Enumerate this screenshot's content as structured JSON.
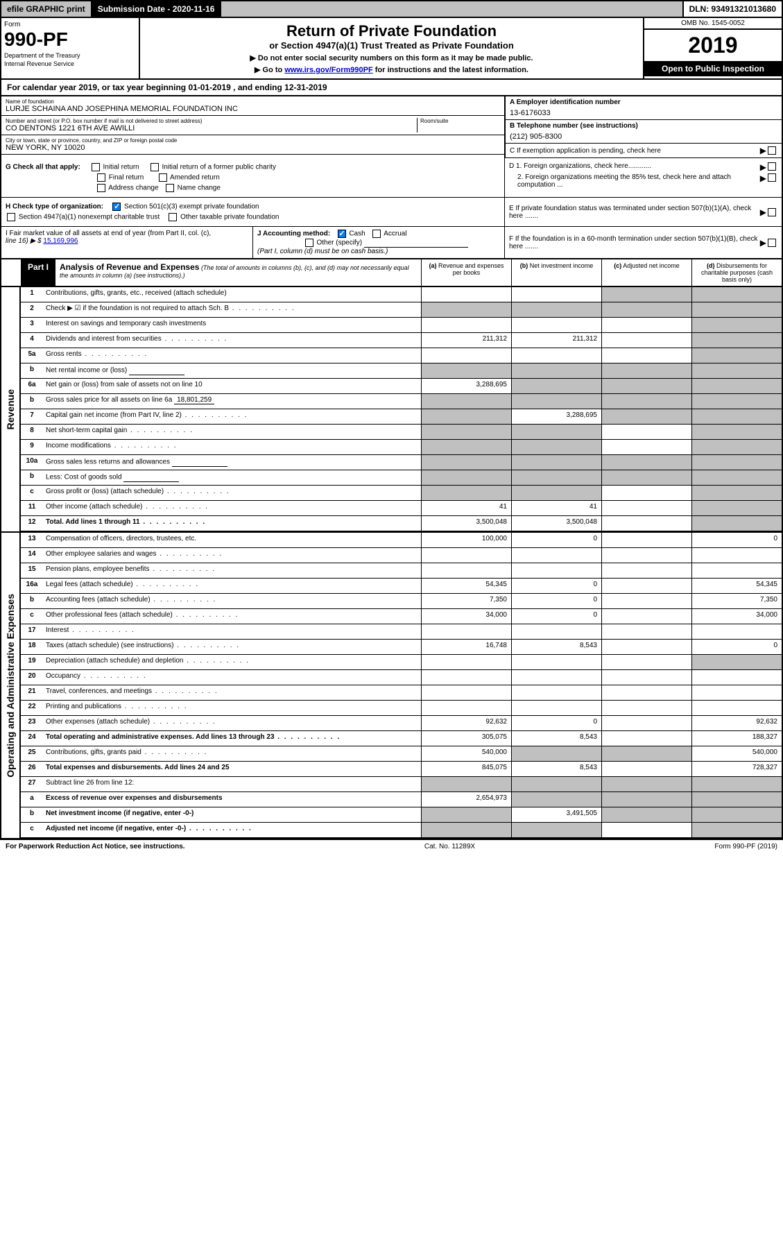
{
  "topbar": {
    "efile": "efile GRAPHIC print",
    "sub_label": "Submission Date - 2020-11-16",
    "dln": "DLN: 93491321013680"
  },
  "header": {
    "form_label": "Form",
    "form_num": "990-PF",
    "dept": "Department of the Treasury",
    "irs": "Internal Revenue Service",
    "title": "Return of Private Foundation",
    "subtitle": "or Section 4947(a)(1) Trust Treated as Private Foundation",
    "warn1": "▶ Do not enter social security numbers on this form as it may be made public.",
    "warn2_pre": "▶ Go to ",
    "warn2_link": "www.irs.gov/Form990PF",
    "warn2_post": " for instructions and the latest information.",
    "omb": "OMB No. 1545-0052",
    "year": "2019",
    "inspect": "Open to Public Inspection"
  },
  "cal": "For calendar year 2019, or tax year beginning 01-01-2019                            , and ending 12-31-2019",
  "info": {
    "name_label": "Name of foundation",
    "name": "LURJE SCHAINA AND JOSEPHINA MEMORIAL FOUNDATION INC",
    "addr_label": "Number and street (or P.O. box number if mail is not delivered to street address)",
    "addr": "CO DENTONS 1221 6TH AVE AWILLI",
    "room_label": "Room/suite",
    "city_label": "City or town, state or province, country, and ZIP or foreign postal code",
    "city": "NEW YORK, NY  10020",
    "ein_label": "A Employer identification number",
    "ein": "13-6176033",
    "tel_label": "B Telephone number (see instructions)",
    "tel": "(212) 905-8300",
    "c": "C If exemption application is pending, check here",
    "d1": "D 1. Foreign organizations, check here............",
    "d2": "2. Foreign organizations meeting the 85% test, check here and attach computation ...",
    "e": "E  If private foundation status was terminated under section 507(b)(1)(A), check here .......",
    "f": "F  If the foundation is in a 60-month termination under section 507(b)(1)(B), check here .......",
    "g_label": "G Check all that apply:",
    "g_opts": [
      "Initial return",
      "Initial return of a former public charity",
      "Final return",
      "Amended return",
      "Address change",
      "Name change"
    ],
    "h_label": "H Check type of organization:",
    "h_opts": [
      "Section 501(c)(3) exempt private foundation",
      "Section 4947(a)(1) nonexempt charitable trust",
      "Other taxable private foundation"
    ],
    "i_label": "I Fair market value of all assets at end of year (from Part II, col. (c),",
    "i_line": "line 16) ▶ $",
    "i_val": "15,169,996",
    "j_label": "J Accounting method:",
    "j_cash": "Cash",
    "j_accrual": "Accrual",
    "j_other": "Other (specify)",
    "j_note": "(Part I, column (d) must be on cash basis.)"
  },
  "part1": {
    "tab": "Part I",
    "title": "Analysis of Revenue and Expenses",
    "sub": " (The total of amounts in columns (b), (c), and (d) may not necessarily equal the amounts in column (a) (see instructions).)",
    "cols": [
      {
        "l": "(a)",
        "t": "Revenue and expenses per books"
      },
      {
        "l": "(b)",
        "t": "Net investment income"
      },
      {
        "l": "(c)",
        "t": "Adjusted net income"
      },
      {
        "l": "(d)",
        "t": "Disbursements for charitable purposes (cash basis only)"
      }
    ]
  },
  "revenue_label": "Revenue",
  "expense_label": "Operating and Administrative Expenses",
  "rows": [
    {
      "n": "1",
      "d": "Contributions, gifts, grants, etc., received (attach schedule)",
      "a": "",
      "b": "",
      "c": "g",
      "dd": "g"
    },
    {
      "n": "2",
      "d": "Check ▶ ☑ if the foundation is not required to attach Sch. B",
      "a": "g",
      "b": "g",
      "c": "g",
      "dd": "g",
      "dots": true
    },
    {
      "n": "3",
      "d": "Interest on savings and temporary cash investments",
      "a": "",
      "b": "",
      "c": "",
      "dd": "g"
    },
    {
      "n": "4",
      "d": "Dividends and interest from securities",
      "a": "211,312",
      "b": "211,312",
      "c": "",
      "dd": "g",
      "dots": true
    },
    {
      "n": "5a",
      "d": "Gross rents",
      "a": "",
      "b": "",
      "c": "",
      "dd": "g",
      "dots": true
    },
    {
      "n": "b",
      "d": "Net rental income or (loss)",
      "a": "g",
      "b": "g",
      "c": "g",
      "dd": "g",
      "box": true
    },
    {
      "n": "6a",
      "d": "Net gain or (loss) from sale of assets not on line 10",
      "a": "3,288,695",
      "b": "g",
      "c": "g",
      "dd": "g"
    },
    {
      "n": "b",
      "d": "Gross sales price for all assets on line 6a",
      "a": "g",
      "b": "g",
      "c": "g",
      "dd": "g",
      "inline": "18,801,259"
    },
    {
      "n": "7",
      "d": "Capital gain net income (from Part IV, line 2)",
      "a": "g",
      "b": "3,288,695",
      "c": "g",
      "dd": "g",
      "dots": true
    },
    {
      "n": "8",
      "d": "Net short-term capital gain",
      "a": "g",
      "b": "g",
      "c": "",
      "dd": "g",
      "dots": true
    },
    {
      "n": "9",
      "d": "Income modifications",
      "a": "g",
      "b": "g",
      "c": "",
      "dd": "g",
      "dots": true
    },
    {
      "n": "10a",
      "d": "Gross sales less returns and allowances",
      "a": "g",
      "b": "g",
      "c": "g",
      "dd": "g",
      "box": true
    },
    {
      "n": "b",
      "d": "Less: Cost of goods sold",
      "a": "g",
      "b": "g",
      "c": "g",
      "dd": "g",
      "box": true,
      "dots": true
    },
    {
      "n": "c",
      "d": "Gross profit or (loss) (attach schedule)",
      "a": "g",
      "b": "g",
      "c": "",
      "dd": "g",
      "dots": true
    },
    {
      "n": "11",
      "d": "Other income (attach schedule)",
      "a": "41",
      "b": "41",
      "c": "",
      "dd": "g",
      "dots": true
    },
    {
      "n": "12",
      "d": "Total. Add lines 1 through 11",
      "a": "3,500,048",
      "b": "3,500,048",
      "c": "",
      "dd": "g",
      "bold": true,
      "dots": true
    }
  ],
  "exp_rows": [
    {
      "n": "13",
      "d": "Compensation of officers, directors, trustees, etc.",
      "a": "100,000",
      "b": "0",
      "c": "",
      "dd": "0"
    },
    {
      "n": "14",
      "d": "Other employee salaries and wages",
      "a": "",
      "b": "",
      "c": "",
      "dd": "",
      "dots": true
    },
    {
      "n": "15",
      "d": "Pension plans, employee benefits",
      "a": "",
      "b": "",
      "c": "",
      "dd": "",
      "dots": true
    },
    {
      "n": "16a",
      "d": "Legal fees (attach schedule)",
      "a": "54,345",
      "b": "0",
      "c": "",
      "dd": "54,345",
      "dots": true
    },
    {
      "n": "b",
      "d": "Accounting fees (attach schedule)",
      "a": "7,350",
      "b": "0",
      "c": "",
      "dd": "7,350",
      "dots": true
    },
    {
      "n": "c",
      "d": "Other professional fees (attach schedule)",
      "a": "34,000",
      "b": "0",
      "c": "",
      "dd": "34,000",
      "dots": true
    },
    {
      "n": "17",
      "d": "Interest",
      "a": "",
      "b": "",
      "c": "",
      "dd": "",
      "dots": true
    },
    {
      "n": "18",
      "d": "Taxes (attach schedule) (see instructions)",
      "a": "16,748",
      "b": "8,543",
      "c": "",
      "dd": "0",
      "dots": true
    },
    {
      "n": "19",
      "d": "Depreciation (attach schedule) and depletion",
      "a": "",
      "b": "",
      "c": "",
      "dd": "g",
      "dots": true
    },
    {
      "n": "20",
      "d": "Occupancy",
      "a": "",
      "b": "",
      "c": "",
      "dd": "",
      "dots": true
    },
    {
      "n": "21",
      "d": "Travel, conferences, and meetings",
      "a": "",
      "b": "",
      "c": "",
      "dd": "",
      "dots": true
    },
    {
      "n": "22",
      "d": "Printing and publications",
      "a": "",
      "b": "",
      "c": "",
      "dd": "",
      "dots": true
    },
    {
      "n": "23",
      "d": "Other expenses (attach schedule)",
      "a": "92,632",
      "b": "0",
      "c": "",
      "dd": "92,632",
      "dots": true
    },
    {
      "n": "24",
      "d": "Total operating and administrative expenses. Add lines 13 through 23",
      "a": "305,075",
      "b": "8,543",
      "c": "",
      "dd": "188,327",
      "bold": true,
      "dots": true
    },
    {
      "n": "25",
      "d": "Contributions, gifts, grants paid",
      "a": "540,000",
      "b": "g",
      "c": "g",
      "dd": "540,000",
      "dots": true
    },
    {
      "n": "26",
      "d": "Total expenses and disbursements. Add lines 24 and 25",
      "a": "845,075",
      "b": "8,543",
      "c": "",
      "dd": "728,327",
      "bold": true
    },
    {
      "n": "27",
      "d": "Subtract line 26 from line 12:",
      "a": "g",
      "b": "g",
      "c": "g",
      "dd": "g"
    },
    {
      "n": "a",
      "d": "Excess of revenue over expenses and disbursements",
      "a": "2,654,973",
      "b": "g",
      "c": "g",
      "dd": "g",
      "bold": true
    },
    {
      "n": "b",
      "d": "Net investment income (if negative, enter -0-)",
      "a": "g",
      "b": "3,491,505",
      "c": "g",
      "dd": "g",
      "bold": true
    },
    {
      "n": "c",
      "d": "Adjusted net income (if negative, enter -0-)",
      "a": "g",
      "b": "g",
      "c": "",
      "dd": "g",
      "bold": true,
      "dots": true
    }
  ],
  "footer": {
    "l": "For Paperwork Reduction Act Notice, see instructions.",
    "c": "Cat. No. 11289X",
    "r": "Form 990-PF (2019)"
  }
}
